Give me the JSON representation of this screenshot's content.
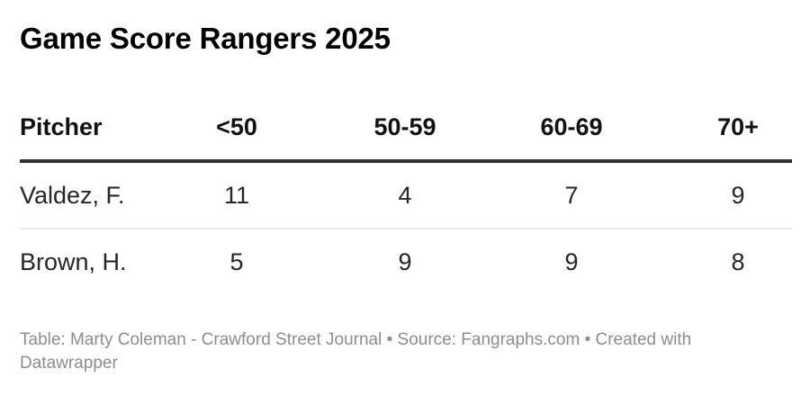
{
  "title": "Game Score Rangers 2025",
  "chart_data": {
    "type": "table",
    "title": "Game Score Rangers 2025",
    "columns": [
      "Pitcher",
      "<50",
      "50-59",
      "60-69",
      "70+"
    ],
    "rows": [
      [
        "Valdez, F.",
        "11",
        "4",
        "7",
        "9"
      ],
      [
        "Brown, H.",
        "5",
        "9",
        "9",
        "8"
      ]
    ],
    "layout_hints": {
      "first_column_align": "left",
      "numeric_columns_align": "center",
      "header_rule_color": "#333333",
      "row_divider_color": "#e9e9e9"
    }
  },
  "footer": {
    "line1": "Table: Marty Coleman - Crawford Street Journal • Source: Fangraphs.com • Created with",
    "line2": "Datawrapper"
  },
  "colors": {
    "title_text": "#000000",
    "header_text": "#121212",
    "body_text": "#262626",
    "footer_text": "#8d8d8d",
    "background": "#ffffff"
  }
}
